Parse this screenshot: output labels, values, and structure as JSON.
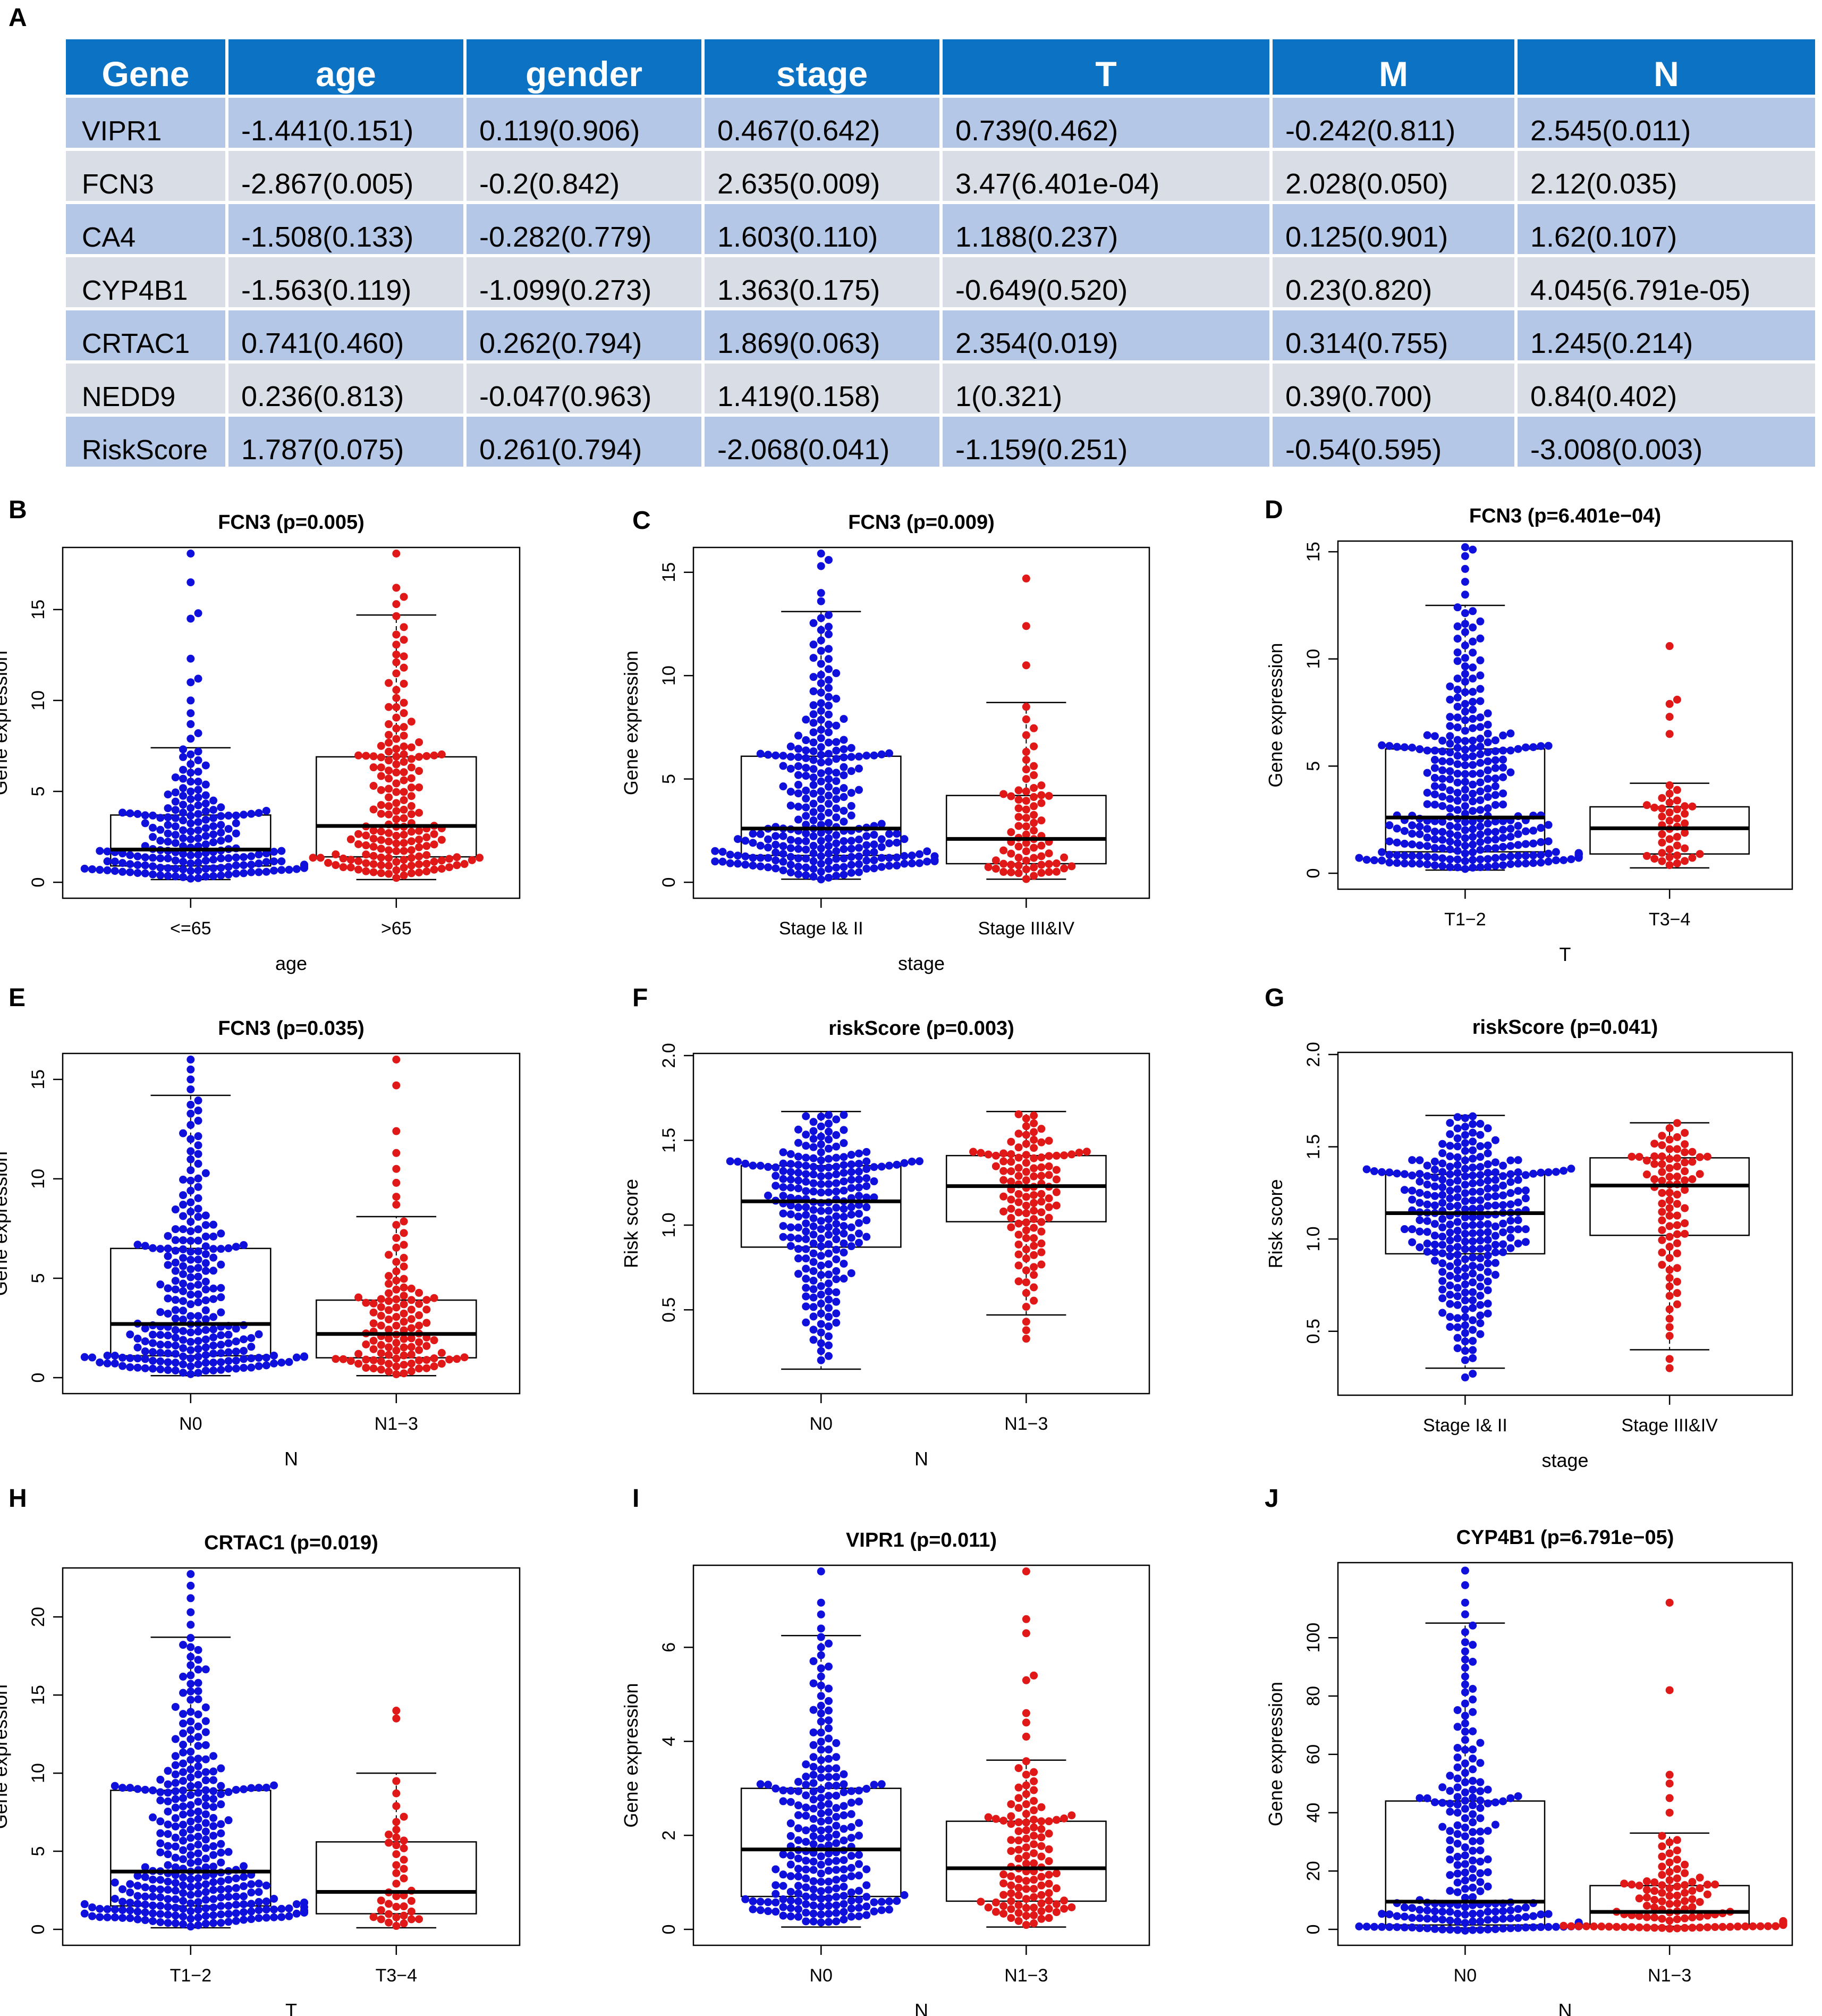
{
  "summary_table": {
    "panel_label": "A",
    "headers": [
      "Gene",
      "age",
      "gender",
      "stage",
      "T",
      "M",
      "N"
    ],
    "rows": [
      [
        "VIPR1",
        "-1.441(0.151)",
        "0.119(0.906)",
        "0.467(0.642)",
        "0.739(0.462)",
        "-0.242(0.811)",
        "2.545(0.011)"
      ],
      [
        "FCN3",
        "-2.867(0.005)",
        "-0.2(0.842)",
        "2.635(0.009)",
        "3.47(6.401e-04)",
        "2.028(0.050)",
        "2.12(0.035)"
      ],
      [
        "CA4",
        "-1.508(0.133)",
        "-0.282(0.779)",
        "1.603(0.110)",
        "1.188(0.237)",
        "0.125(0.901)",
        "1.62(0.107)"
      ],
      [
        "CYP4B1",
        "-1.563(0.119)",
        "-1.099(0.273)",
        "1.363(0.175)",
        "-0.649(0.520)",
        "0.23(0.820)",
        "4.045(6.791e-05)"
      ],
      [
        "CRTAC1",
        "0.741(0.460)",
        "0.262(0.794)",
        "1.869(0.063)",
        "2.354(0.019)",
        "0.314(0.755)",
        "1.245(0.214)"
      ],
      [
        "NEDD9",
        "0.236(0.813)",
        "-0.047(0.963)",
        "1.419(0.158)",
        "1(0.321)",
        "0.39(0.700)",
        "0.84(0.402)"
      ],
      [
        "RiskScore",
        "1.787(0.075)",
        "0.261(0.794)",
        "-2.068(0.041)",
        "-1.159(0.251)",
        "-0.54(0.595)",
        "-3.008(0.003)"
      ]
    ],
    "colors": {
      "header": "#0b72c4",
      "row_odd": "#b4c7e7",
      "row_even": "#d9dde6"
    }
  },
  "colors": {
    "group1": "#1010dd",
    "group2": "#e01818"
  },
  "chart_data": [
    {
      "id": "B",
      "type": "boxplot+beeswarm",
      "title": "FCN3 (p=0.005)",
      "ylabel": "Gene expression",
      "xlabel": "age",
      "categories": [
        "<=65",
        ">65"
      ],
      "ylim": [
        0,
        18.3
      ],
      "yticks": [
        0,
        5,
        10,
        15
      ],
      "ytick_labels": [
        "0",
        "5",
        "10",
        "15"
      ],
      "boxes": [
        {
          "q1": 0.9,
          "median": 1.8,
          "q3": 3.7,
          "whisker_low": 0.15,
          "whisker_high": 7.4
        },
        {
          "q1": 1.4,
          "median": 3.1,
          "q3": 6.9,
          "whisker_low": 0.15,
          "whisker_high": 14.7
        }
      ],
      "n": [
        190,
        170
      ],
      "outliers": [
        [
          7.9,
          8.2,
          8.7,
          9.3,
          10.0,
          11.0,
          11.2,
          12.3,
          14.5,
          14.8,
          16.5,
          18.3
        ],
        [
          15.3,
          15.7,
          16.2,
          18.3
        ]
      ]
    },
    {
      "id": "C",
      "type": "boxplot+beeswarm",
      "title": "FCN3 (p=0.009)",
      "ylabel": "Gene expression",
      "xlabel": "stage",
      "categories": [
        "Stage I& II",
        "Stage III&IV"
      ],
      "ylim": [
        0,
        16.1
      ],
      "yticks": [
        0,
        5,
        10,
        15
      ],
      "ytick_labels": [
        "0",
        "5",
        "10",
        "15"
      ],
      "boxes": [
        {
          "q1": 1.3,
          "median": 2.6,
          "q3": 6.1,
          "whisker_low": 0.15,
          "whisker_high": 13.1
        },
        {
          "q1": 0.9,
          "median": 2.1,
          "q3": 4.2,
          "whisker_low": 0.15,
          "whisker_high": 8.7
        }
      ],
      "n": [
        270,
        75
      ],
      "outliers": [
        [
          13.6,
          14.0,
          15.3,
          15.6,
          16.1
        ],
        [
          10.5,
          12.4,
          14.7
        ]
      ]
    },
    {
      "id": "D",
      "type": "boxplot+beeswarm",
      "title": "FCN3 (p=6.401e−04)",
      "ylabel": "Gene expression",
      "xlabel": "T",
      "categories": [
        "T1−2",
        "T3−4"
      ],
      "ylim": [
        0,
        15.4
      ],
      "yticks": [
        0,
        5,
        10,
        15
      ],
      "ytick_labels": [
        "0",
        "5",
        "10",
        "15"
      ],
      "boxes": [
        {
          "q1": 1.0,
          "median": 2.6,
          "q3": 5.8,
          "whisker_low": 0.15,
          "whisker_high": 12.5
        },
        {
          "q1": 0.9,
          "median": 2.1,
          "q3": 3.1,
          "whisker_low": 0.25,
          "whisker_high": 4.2
        }
      ],
      "n": [
        320,
        40
      ],
      "outliers": [
        [
          13.0,
          13.6,
          14.2,
          14.8,
          15.1,
          15.4
        ],
        [
          6.5,
          7.3,
          7.9,
          8.1,
          10.6
        ]
      ]
    },
    {
      "id": "E",
      "type": "boxplot+beeswarm",
      "title": "FCN3 (p=0.035)",
      "ylabel": "Gene expression",
      "xlabel": "N",
      "categories": [
        "N0",
        "N1−3"
      ],
      "ylim": [
        0,
        16.2
      ],
      "yticks": [
        0,
        5,
        10,
        15
      ],
      "ytick_labels": [
        "0",
        "5",
        "10",
        "15"
      ],
      "boxes": [
        {
          "q1": 1.1,
          "median": 2.7,
          "q3": 6.5,
          "whisker_low": 0.1,
          "whisker_high": 14.2
        },
        {
          "q1": 1.0,
          "median": 2.2,
          "q3": 3.9,
          "whisker_low": 0.1,
          "whisker_high": 8.1
        }
      ],
      "n": [
        230,
        110
      ],
      "outliers": [
        [
          14.5,
          15.0,
          15.5,
          16.2
        ],
        [
          8.7,
          9.1,
          9.8,
          10.5,
          11.3,
          12.4,
          14.7,
          16.5
        ]
      ]
    },
    {
      "id": "F",
      "type": "boxplot+beeswarm",
      "title": "riskScore (p=0.003)",
      "ylabel": "Risk score",
      "xlabel": "N",
      "categories": [
        "N0",
        "N1−3"
      ],
      "ylim": [
        0.1,
        2.0
      ],
      "yticks": [
        0.5,
        1.0,
        1.5,
        2.0
      ],
      "ytick_labels": [
        "0.5",
        "1.0",
        "1.5",
        "2.0"
      ],
      "boxes": [
        {
          "q1": 0.87,
          "median": 1.14,
          "q3": 1.35,
          "whisker_low": 0.15,
          "whisker_high": 1.67
        },
        {
          "q1": 1.02,
          "median": 1.23,
          "q3": 1.41,
          "whisker_low": 0.47,
          "whisker_high": 1.67
        }
      ],
      "n": [
        230,
        110
      ],
      "outliers": [
        [],
        [
          0.33,
          0.38,
          0.43
        ]
      ]
    },
    {
      "id": "G",
      "type": "boxplot+beeswarm",
      "title": "riskScore (p=0.041)",
      "ylabel": "Risk score",
      "xlabel": "stage",
      "categories": [
        "Stage I& II",
        "Stage III&IV"
      ],
      "ylim": [
        0.24,
        2.0
      ],
      "yticks": [
        0.5,
        1.0,
        1.5,
        2.0
      ],
      "ytick_labels": [
        "0.5",
        "1.0",
        "1.5",
        "2.0"
      ],
      "boxes": [
        {
          "q1": 0.92,
          "median": 1.14,
          "q3": 1.35,
          "whisker_low": 0.3,
          "whisker_high": 1.67
        },
        {
          "q1": 1.02,
          "median": 1.29,
          "q3": 1.44,
          "whisker_low": 0.4,
          "whisker_high": 1.63
        }
      ],
      "n": [
        275,
        80
      ],
      "outliers": [
        [
          0.25,
          0.27
        ],
        [
          0.3,
          0.35
        ]
      ]
    },
    {
      "id": "H",
      "type": "boxplot+beeswarm",
      "title": "CRTAC1 (p=0.019)",
      "ylabel": "Gene expression",
      "xlabel": "T",
      "categories": [
        "T1−2",
        "T3−4"
      ],
      "ylim": [
        0,
        23.0
      ],
      "yticks": [
        0,
        5,
        10,
        15,
        20
      ],
      "ytick_labels": [
        "0",
        "5",
        "10",
        "15",
        "20"
      ],
      "boxes": [
        {
          "q1": 1.5,
          "median": 3.7,
          "q3": 8.9,
          "whisker_low": 0.1,
          "whisker_high": 18.7
        },
        {
          "q1": 1.0,
          "median": 2.4,
          "q3": 5.6,
          "whisker_low": 0.1,
          "whisker_high": 10.0
        }
      ],
      "n": [
        320,
        40
      ],
      "outliers": [
        [
          19.5,
          20.3,
          21.2,
          22.0,
          23.0
        ],
        [
          13.5,
          14.0
        ]
      ]
    },
    {
      "id": "I",
      "type": "boxplot+beeswarm",
      "title": "VIPR1 (p=0.011)",
      "ylabel": "Gene expression",
      "xlabel": "N",
      "categories": [
        "N0",
        "N1−3"
      ],
      "ylim": [
        0,
        7.7
      ],
      "yticks": [
        0,
        2,
        4,
        6
      ],
      "ytick_labels": [
        "0",
        "2",
        "4",
        "6"
      ],
      "boxes": [
        {
          "q1": 0.7,
          "median": 1.7,
          "q3": 3.0,
          "whisker_low": 0.05,
          "whisker_high": 6.25
        },
        {
          "q1": 0.6,
          "median": 1.3,
          "q3": 2.3,
          "whisker_low": 0.05,
          "whisker_high": 3.6
        }
      ],
      "n": [
        230,
        110
      ],
      "outliers": [
        [
          6.4,
          6.7,
          6.95,
          7.7
        ],
        [
          4.1,
          4.4,
          4.6,
          5.3,
          5.4,
          6.3,
          6.6,
          7.8
        ]
      ]
    },
    {
      "id": "J",
      "type": "boxplot+beeswarm",
      "title": "CYP4B1 (p=6.791e−05)",
      "ylabel": "Gene expression",
      "xlabel": "N",
      "categories": [
        "N0",
        "N1−3"
      ],
      "ylim": [
        0,
        125
      ],
      "yticks": [
        0,
        20,
        40,
        60,
        80,
        100
      ],
      "ytick_labels": [
        "0",
        "20",
        "40",
        "60",
        "80",
        "100"
      ],
      "boxes": [
        {
          "q1": 1.5,
          "median": 9.5,
          "q3": 44,
          "whisker_low": 0.5,
          "whisker_high": 105
        },
        {
          "q1": 1.0,
          "median": 6.0,
          "q3": 15,
          "whisker_low": 0.5,
          "whisker_high": 33
        }
      ],
      "n": [
        230,
        110
      ],
      "outliers": [
        [
          108,
          112,
          118,
          123
        ],
        [
          40,
          45,
          50,
          53,
          82,
          112
        ]
      ]
    }
  ]
}
